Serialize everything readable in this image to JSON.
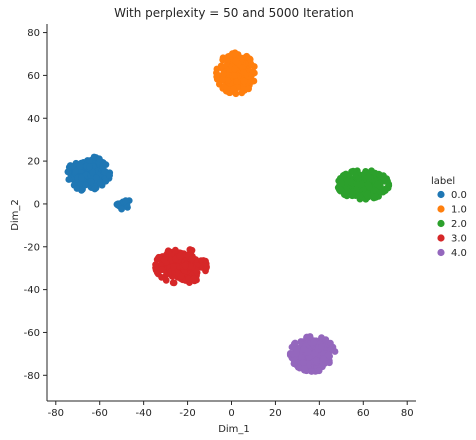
{
  "chart_data": {
    "type": "scatter",
    "title": "With perplexity = 50 and 5000 Iteration",
    "xlabel": "Dim_1",
    "ylabel": "Dim_2",
    "xlim": [
      -84,
      84
    ],
    "ylim": [
      -92,
      84
    ],
    "xticks": [
      -80,
      -60,
      -40,
      -20,
      0,
      20,
      40,
      60,
      80
    ],
    "yticks": [
      -80,
      -60,
      -40,
      -20,
      0,
      20,
      40,
      60,
      80
    ],
    "grid": false,
    "legend": {
      "title": "label",
      "placement": "right"
    },
    "series": [
      {
        "name": "0.0",
        "color": "#1f77b4",
        "clusters": [
          {
            "center": [
              -65,
              14
            ],
            "spread": [
              7,
              6
            ],
            "count": 260
          },
          {
            "center": [
              -49,
              0
            ],
            "spread": [
              2.5,
              2.5
            ],
            "count": 22
          }
        ]
      },
      {
        "name": "1.0",
        "color": "#ff7f0e",
        "clusters": [
          {
            "center": [
              2,
              61
            ],
            "spread": [
              6.5,
              7
            ],
            "count": 230
          }
        ]
      },
      {
        "name": "2.0",
        "color": "#2ca02c",
        "clusters": [
          {
            "center": [
              60,
              9
            ],
            "spread": [
              8.5,
              5
            ],
            "count": 260
          }
        ]
      },
      {
        "name": "3.0",
        "color": "#d62728",
        "clusters": [
          {
            "center": [
              -23,
              -29
            ],
            "spread": [
              8.5,
              6
            ],
            "count": 280
          }
        ]
      },
      {
        "name": "4.0",
        "color": "#9467bd",
        "clusters": [
          {
            "center": [
              37,
              -70
            ],
            "spread": [
              7.5,
              6
            ],
            "count": 260
          }
        ]
      }
    ]
  }
}
